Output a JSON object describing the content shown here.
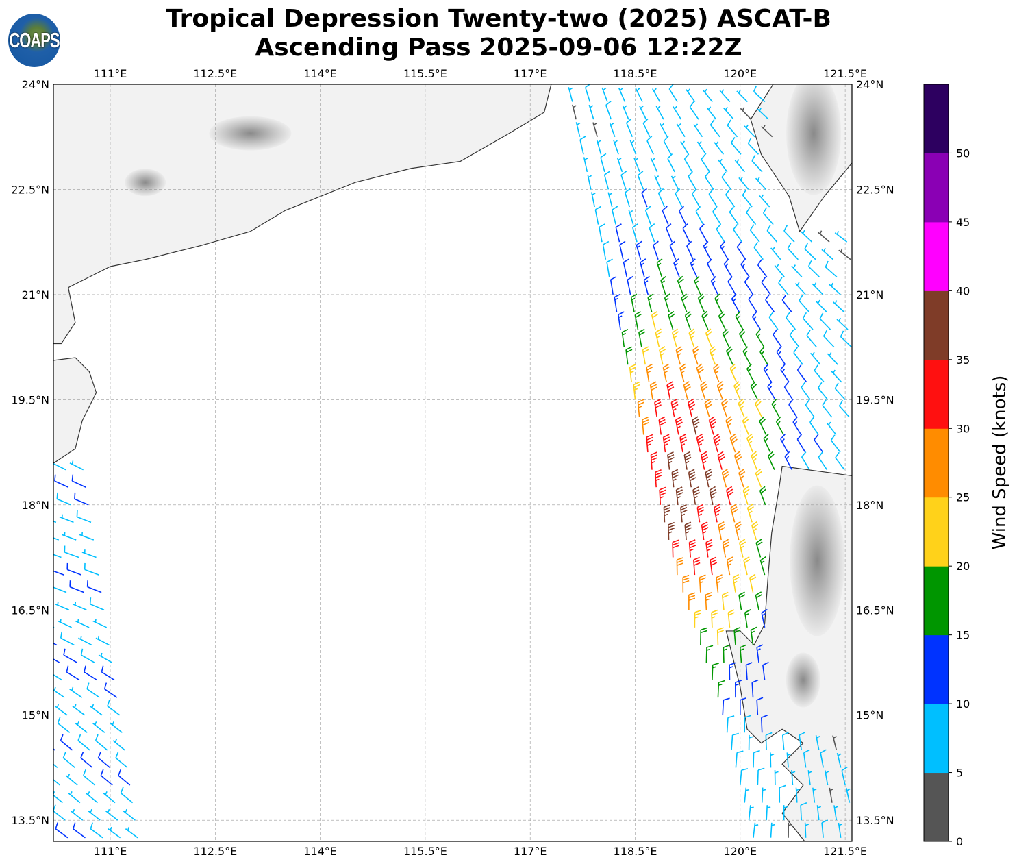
{
  "title": {
    "line1": "Tropical Depression Twenty-two (2025) ASCAT-B",
    "line2": "Ascending Pass 2025-09-06 12:22Z"
  },
  "logo_text": "COAPS",
  "map": {
    "lon_range": [
      110.19,
      121.6
    ],
    "lat_range": [
      13.2,
      24.0
    ],
    "lon_ticks": [
      {
        "v": 111,
        "label": "111°E"
      },
      {
        "v": 112.5,
        "label": "112.5°E"
      },
      {
        "v": 114,
        "label": "114°E"
      },
      {
        "v": 115.5,
        "label": "115.5°E"
      },
      {
        "v": 117,
        "label": "117°E"
      },
      {
        "v": 118.5,
        "label": "118.5°E"
      },
      {
        "v": 120,
        "label": "120°E"
      },
      {
        "v": 121.5,
        "label": "121.5°E"
      }
    ],
    "lat_ticks": [
      {
        "v": 24,
        "label": "24°N"
      },
      {
        "v": 22.5,
        "label": "22.5°N"
      },
      {
        "v": 21,
        "label": "21°N"
      },
      {
        "v": 19.5,
        "label": "19.5°N"
      },
      {
        "v": 18,
        "label": "18°N"
      },
      {
        "v": 16.5,
        "label": "16.5°N"
      },
      {
        "v": 15,
        "label": "15°N"
      },
      {
        "v": 13.5,
        "label": "13.5°N"
      }
    ]
  },
  "wind_field": {
    "max_center": {
      "lat": 18.2,
      "lon": 119.2
    },
    "peak_speed_kt": 31,
    "swaths": [
      {
        "name": "east",
        "left_edge": [
          [
            24,
            117.55
          ],
          [
            19.5,
            118.5
          ],
          [
            17,
            119.1
          ],
          [
            15.2,
            119.7
          ],
          [
            13.2,
            120.2
          ]
        ],
        "right_edge_lon": 121.6
      },
      {
        "name": "west",
        "right_edge": [
          [
            18.6,
            110.6
          ],
          [
            13.2,
            111.4
          ]
        ],
        "left_edge_lon": 110.19
      }
    ]
  },
  "colorbar": {
    "label": "Wind Speed (knots)",
    "range": [
      0,
      55
    ],
    "bins": [
      {
        "from": 0,
        "to": 5,
        "color": "#555555"
      },
      {
        "from": 5,
        "to": 10,
        "color": "#00bfff"
      },
      {
        "from": 10,
        "to": 15,
        "color": "#0033ff"
      },
      {
        "from": 15,
        "to": 20,
        "color": "#009600"
      },
      {
        "from": 20,
        "to": 25,
        "color": "#ffd21a"
      },
      {
        "from": 25,
        "to": 30,
        "color": "#ff8c00"
      },
      {
        "from": 30,
        "to": 35,
        "color": "#ff1010"
      },
      {
        "from": 35,
        "to": 40,
        "color": "#7f3c28"
      },
      {
        "from": 40,
        "to": 45,
        "color": "#ff00ff"
      },
      {
        "from": 45,
        "to": 50,
        "color": "#8a00b4"
      },
      {
        "from": 50,
        "to": 55,
        "color": "#2d0060"
      }
    ],
    "ticks": [
      "0",
      "5",
      "10",
      "15",
      "20",
      "25",
      "30",
      "35",
      "40",
      "45",
      "50"
    ]
  }
}
